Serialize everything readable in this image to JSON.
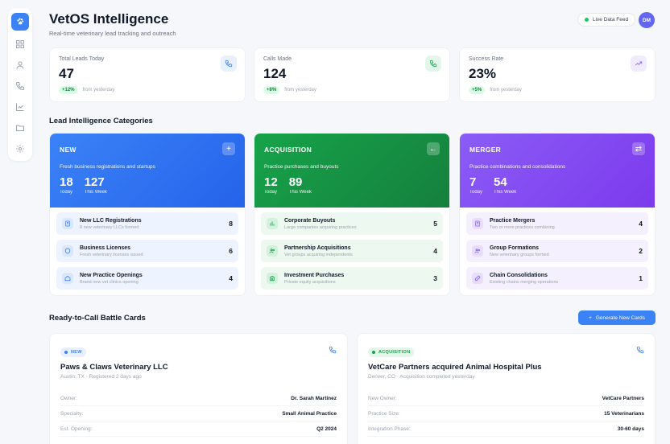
{
  "sidebar": {
    "nav": [
      "dashboard-icon",
      "user-icon",
      "phone-icon",
      "chart-icon",
      "folder-icon",
      "settings-icon"
    ]
  },
  "header": {
    "title": "VetOS Intelligence",
    "subtitle": "Real-time veterinary lead tracking and outreach",
    "live_label": "Live Data Feed",
    "avatar": "DM"
  },
  "stats": [
    {
      "label": "Total Leads Today",
      "value": "47",
      "change": "+12%",
      "note": "from yesterday",
      "color": "#3b82f6",
      "bg": "#e8f0fe"
    },
    {
      "label": "Calls Made",
      "value": "124",
      "change": "+8%",
      "note": "from yesterday",
      "color": "#16a34a",
      "bg": "#e3f6ea"
    },
    {
      "label": "Success Rate",
      "value": "23%",
      "change": "+5%",
      "note": "from yesterday",
      "color": "#8b5cf6",
      "bg": "#f0ebfe"
    }
  ],
  "categories_title": "Lead Intelligence Categories",
  "categories": [
    {
      "name": "NEW",
      "desc": "Fresh business registrations and startups",
      "today": "18",
      "week": "127",
      "today_label": "Today",
      "week_label": "This Week",
      "grad": "linear-gradient(135deg,#3b82f6,#2563eb)",
      "rowbg": "#eef4ff",
      "iconbg": "#dbe7fe",
      "iconcolor": "#3b82f6",
      "btn": "+",
      "rows": [
        {
          "title": "New LLC Registrations",
          "sub": "8 new veterinary LLCs formed",
          "count": "8"
        },
        {
          "title": "Business Licenses",
          "sub": "Fresh veterinary licenses issued",
          "count": "6"
        },
        {
          "title": "New Practice Openings",
          "sub": "Brand new vet clinics opening",
          "count": "4"
        }
      ]
    },
    {
      "name": "ACQUISITION",
      "desc": "Practice purchases and buyouts",
      "today": "12",
      "week": "89",
      "today_label": "Today",
      "week_label": "This Week",
      "grad": "linear-gradient(135deg,#16a34a,#15803d)",
      "rowbg": "#ecf8f0",
      "iconbg": "#d3f1dd",
      "iconcolor": "#16a34a",
      "btn": "←",
      "rows": [
        {
          "title": "Corporate Buyouts",
          "sub": "Large companies acquiring practices",
          "count": "5"
        },
        {
          "title": "Partnership Acquisitions",
          "sub": "Vet groups acquiring independents",
          "count": "4"
        },
        {
          "title": "Investment Purchases",
          "sub": "Private equity acquisitions",
          "count": "3"
        }
      ]
    },
    {
      "name": "MERGER",
      "desc": "Practice combinations and consolidations",
      "today": "7",
      "week": "54",
      "today_label": "Today",
      "week_label": "This Week",
      "grad": "linear-gradient(135deg,#8b5cf6,#7c3aed)",
      "rowbg": "#f4f0fe",
      "iconbg": "#e7defd",
      "iconcolor": "#8b5cf6",
      "btn": "⇄",
      "rows": [
        {
          "title": "Practice Mergers",
          "sub": "Two or more practices combining",
          "count": "4"
        },
        {
          "title": "Group Formations",
          "sub": "New veterinary groups formed",
          "count": "2"
        },
        {
          "title": "Chain Consolidations",
          "sub": "Existing chains merging operations",
          "count": "1"
        }
      ]
    }
  ],
  "battle_title": "Ready-to-Call Battle Cards",
  "generate_label": "Generate New Cards",
  "cards": [
    {
      "badge": "NEW",
      "badge_color": "#3b82f6",
      "badge_bg": "#e8f0fe",
      "title": "Paws & Claws Veterinary LLC",
      "sub": "Austin, TX · Registered 2 days ago",
      "fields": [
        {
          "k": "Owner:",
          "v": "Dr. Sarah Martinez"
        },
        {
          "k": "Specialty:",
          "v": "Small Animal Practice"
        },
        {
          "k": "Est. Opening:",
          "v": "Q2 2024"
        }
      ]
    },
    {
      "badge": "ACQUISITION",
      "badge_color": "#16a34a",
      "badge_bg": "#e3f6ea",
      "title": "VetCare Partners acquired Animal Hospital Plus",
      "sub": "Denver, CO · Acquisition completed yesterday",
      "fields": [
        {
          "k": "New Owner:",
          "v": "VetCare Partners"
        },
        {
          "k": "Practice Size:",
          "v": "15 Veterinarians"
        },
        {
          "k": "Integration Phase:",
          "v": "30-60 days"
        }
      ]
    }
  ]
}
